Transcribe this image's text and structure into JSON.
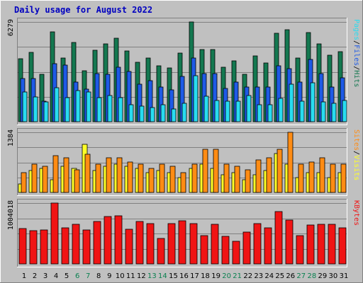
{
  "chart_data": {
    "type": "bar",
    "title": "Daily usage for August 2022",
    "categories": [
      "1",
      "2",
      "3",
      "4",
      "5",
      "6",
      "7",
      "8",
      "9",
      "10",
      "11",
      "12",
      "13",
      "14",
      "15",
      "16",
      "17",
      "18",
      "19",
      "20",
      "21",
      "22",
      "23",
      "24",
      "25",
      "26",
      "27",
      "28",
      "29",
      "30",
      "31"
    ],
    "weekend_days": [
      "6",
      "7",
      "13",
      "14",
      "20",
      "21",
      "27",
      "28"
    ],
    "colors": {
      "hits": "#147850",
      "files": "#1e5ae6",
      "pages": "#28dcf0",
      "visits": "#ffff28",
      "sites": "#ff8c14",
      "kbytes": "#f01414",
      "title": "#0000c0",
      "weekday_label": "#000000",
      "weekend_label": "#0a8050"
    },
    "panels": [
      {
        "id": "hits-files-pages",
        "ymax_label": "6279",
        "ylim": [
          0,
          6279
        ],
        "right_label_parts": [
          "Pages",
          "/",
          "Files",
          "/",
          "Hits"
        ],
        "series": [
          {
            "name": "Hits",
            "values": [
              3950,
              4350,
              3000,
              5650,
              4000,
              5000,
              3200,
              4500,
              4900,
              5250,
              4450,
              3750,
              4000,
              3500,
              3400,
              4300,
              6279,
              4550,
              4550,
              3450,
              3850,
              3000,
              4150,
              3700,
              5550,
              5800,
              4000,
              5600,
              4900,
              4200,
              4400
            ]
          },
          {
            "name": "Files",
            "values": [
              2700,
              2700,
              1300,
              3650,
              3550,
              2500,
              2050,
              3050,
              3000,
              3450,
              3150,
              2350,
              2600,
              2200,
              2000,
              2850,
              4000,
              3050,
              3050,
              2100,
              2500,
              2200,
              2200,
              2200,
              3500,
              3350,
              2500,
              3900,
              3050,
              2200,
              2750
            ]
          },
          {
            "name": "Pages",
            "values": [
              1850,
              1550,
              1250,
              2150,
              1500,
              1950,
              1850,
              1500,
              1650,
              1500,
              1050,
              1000,
              900,
              1050,
              800,
              1150,
              2900,
              1600,
              1350,
              1300,
              1300,
              1650,
              1050,
              1050,
              1450,
              2350,
              1300,
              2450,
              1250,
              1150,
              1350
            ]
          }
        ]
      },
      {
        "id": "sites-visits",
        "ymax_label": "1384",
        "ylim": [
          0,
          1384
        ],
        "right_label_parts": [
          "Sites",
          "/",
          "Visits"
        ],
        "series": [
          {
            "name": "Visits",
            "values": [
              200,
              500,
              550,
              300,
              600,
              550,
              1100,
              500,
              600,
              650,
              600,
              550,
              450,
              500,
              450,
              350,
              550,
              650,
              550,
              400,
              450,
              300,
              400,
              500,
              900,
              650,
              350,
              450,
              450,
              350,
              450
            ]
          },
          {
            "name": "Sites",
            "values": [
              450,
              650,
              600,
              850,
              800,
              520,
              880,
              650,
              800,
              800,
              700,
              650,
              560,
              650,
              600,
              450,
              650,
              1000,
              1000,
              650,
              600,
              520,
              750,
              800,
              1000,
              1384,
              650,
              700,
              800,
              650,
              650
            ]
          }
        ]
      },
      {
        "id": "kbytes",
        "ymax_label": "1004018",
        "ylim": [
          0,
          1004018
        ],
        "right_label_parts": [
          "KBytes"
        ],
        "series": [
          {
            "name": "KBytes",
            "values": [
              580000,
              550000,
              560000,
              1004018,
              600000,
              650000,
              560000,
              700000,
              780000,
              790000,
              570000,
              700000,
              660000,
              420000,
              670000,
              710000,
              670000,
              470000,
              650000,
              450000,
              370000,
              520000,
              660000,
              600000,
              860000,
              720000,
              470000,
              640000,
              650000,
              650000,
              600000
            ]
          }
        ]
      }
    ]
  }
}
